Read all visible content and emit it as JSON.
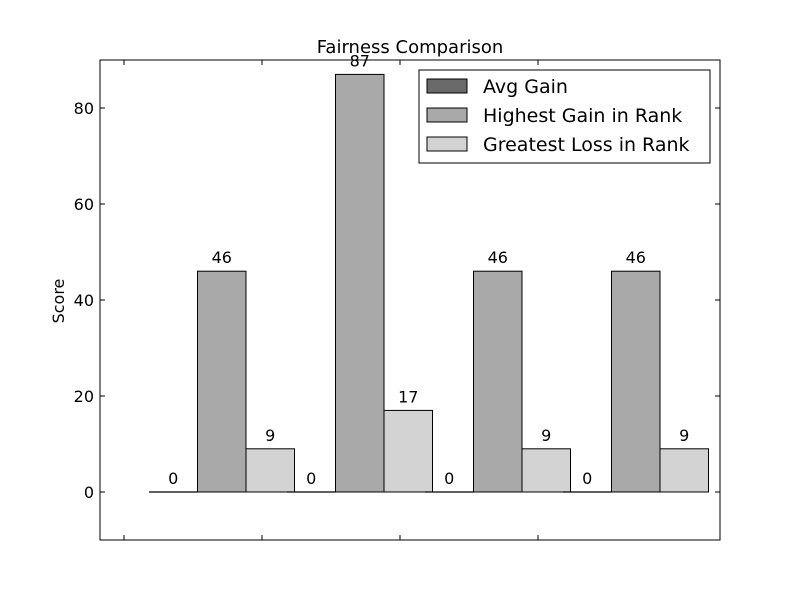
{
  "chart_data": {
    "type": "bar",
    "title": "Fairness Comparison",
    "xlabel": "",
    "ylabel": "Score",
    "ylim": [
      -10,
      90
    ],
    "yticks": [
      0,
      20,
      40,
      60,
      80
    ],
    "groups": 4,
    "series": [
      {
        "name": "Avg Gain",
        "color": "#696969",
        "values": [
          0,
          0,
          0,
          0
        ]
      },
      {
        "name": "Highest Gain in Rank",
        "color": "#a9a9a9",
        "values": [
          46,
          87,
          46,
          46
        ]
      },
      {
        "name": "Greatest Loss in Rank",
        "color": "#d3d3d3",
        "values": [
          9,
          17,
          9,
          9
        ]
      }
    ],
    "legend_position": "top-right",
    "grid": false
  }
}
